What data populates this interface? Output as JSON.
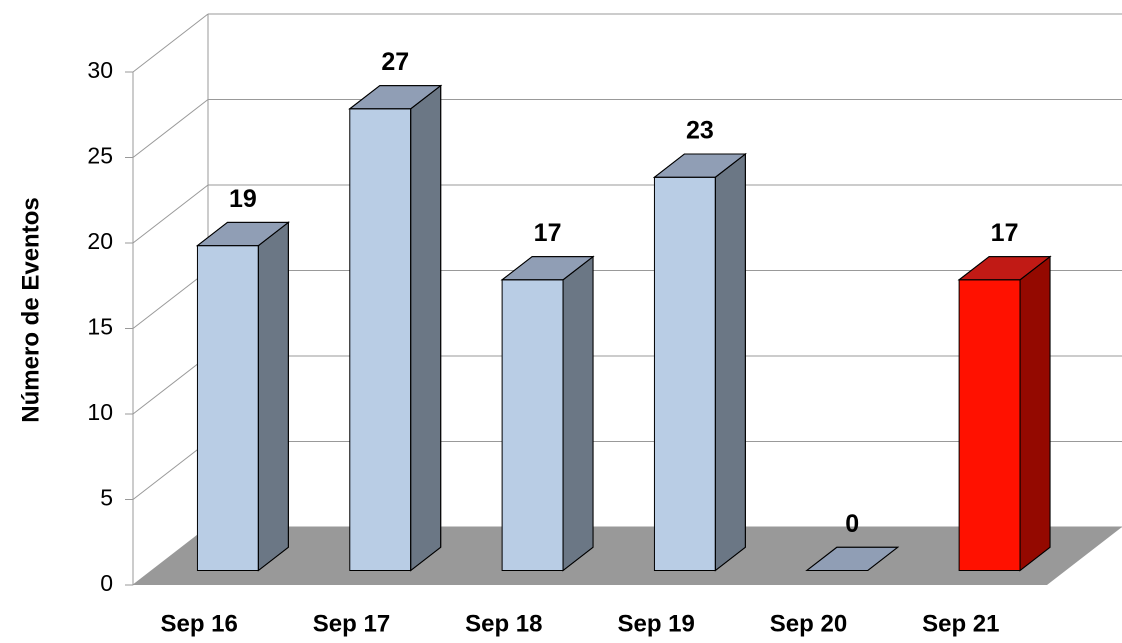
{
  "chart_data": {
    "type": "bar3d",
    "y_label": "Número de Eventos",
    "categories": [
      "Sep 16",
      "Sep 17",
      "Sep 18",
      "Sep 19",
      "Sep 20",
      "Sep 21"
    ],
    "values": [
      19,
      27,
      17,
      23,
      0,
      17
    ],
    "colors": [
      "#b9cde5",
      "#b9cde5",
      "#b9cde5",
      "#b9cde5",
      "#b9cde5",
      "#ff1100"
    ],
    "ylim": [
      0,
      30
    ],
    "yticks": [
      0,
      5,
      10,
      15,
      20,
      25,
      30
    ],
    "grid": true
  }
}
